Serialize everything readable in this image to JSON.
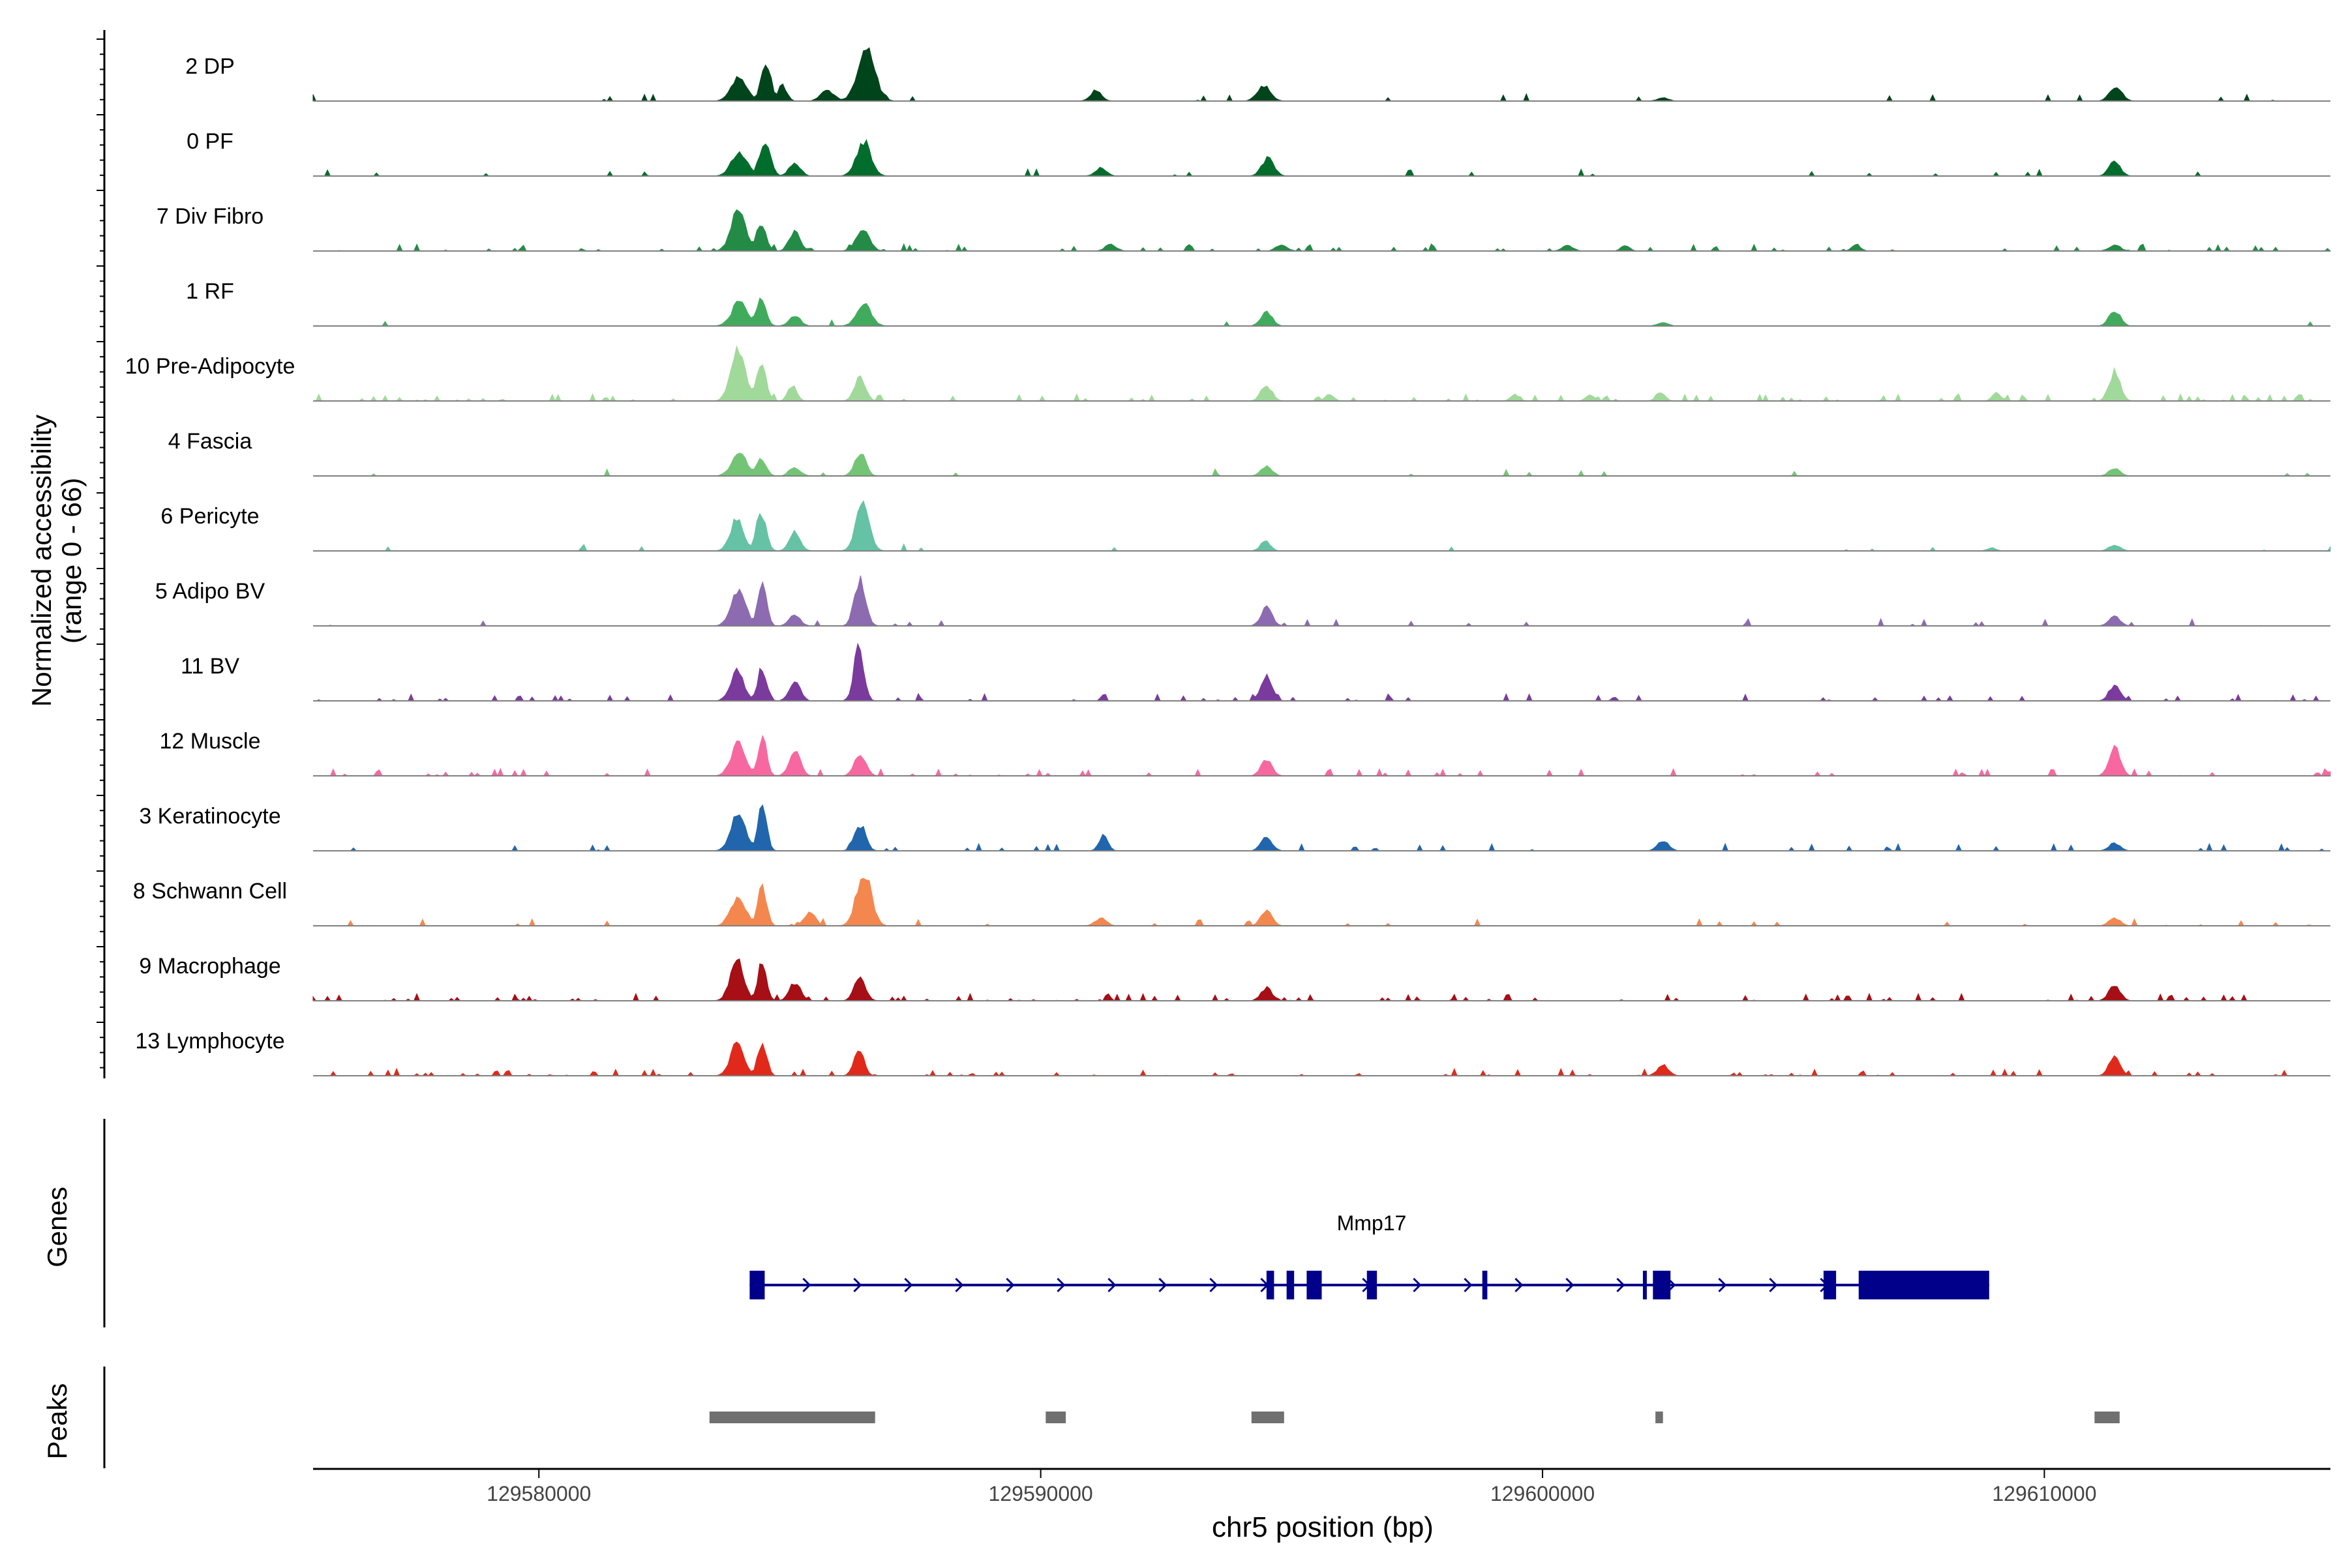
{
  "chart_data": {
    "type": "area",
    "title": "",
    "ylabel_line1": "Normalized accessibility",
    "ylabel_line2": "(range 0 - 66)",
    "yrange": [
      0,
      66
    ],
    "xlabel": "chr5 position (bp)",
    "xlim": [
      129575500,
      129615700
    ],
    "xticks": [
      129580000,
      129590000,
      129600000,
      129610000
    ],
    "xtick_labels": [
      "129580000",
      "129590000",
      "129600000",
      "129610000"
    ],
    "genes_label": "Genes",
    "peaks_label": "Peaks",
    "gene": {
      "name": "Mmp17",
      "strand": "+",
      "start": 129584200,
      "end": 129608900,
      "color": "#00008b",
      "exons": [
        [
          129584200,
          129584500
        ],
        [
          129594500,
          129594650
        ],
        [
          129594900,
          129595050
        ],
        [
          129595300,
          129595600
        ],
        [
          129596500,
          129596700
        ],
        [
          129598800,
          129598900
        ],
        [
          129602000,
          129602050
        ],
        [
          129602200,
          129602550
        ],
        [
          129605600,
          129605850
        ],
        [
          129606300,
          129608900
        ]
      ]
    },
    "peaks": {
      "color": "#707070",
      "regions": [
        [
          129583400,
          129586700
        ],
        [
          129590100,
          129590500
        ],
        [
          129594200,
          129594850
        ],
        [
          129602250,
          129602400
        ],
        [
          129611000,
          129611500
        ]
      ]
    },
    "track_baseline": "#808080",
    "tracks": [
      {
        "name": "2 DP",
        "color": "#00441b",
        "peaks": [
          [
            129583700,
            129584000,
            0.45
          ],
          [
            129584400,
            129584350,
            0.7
          ],
          [
            129584700,
            129584700,
            0.3
          ],
          [
            129585500,
            129585700,
            0.2
          ],
          [
            129586200,
            129586550,
            1.0
          ],
          [
            129590900,
            129591000,
            0.2
          ],
          [
            129594200,
            129594400,
            0.28
          ],
          [
            129602200,
            129602300,
            0.06
          ],
          [
            129611200,
            129611350,
            0.28
          ]
        ],
        "noise": 0.03
      },
      {
        "name": "0 PF",
        "color": "#006d2c",
        "peaks": [
          [
            129583700,
            129584000,
            0.45
          ],
          [
            129584400,
            129584300,
            0.62
          ],
          [
            129584900,
            129585000,
            0.25
          ],
          [
            129586200,
            129586450,
            0.65
          ],
          [
            129591000,
            129591100,
            0.15
          ],
          [
            129594300,
            129594450,
            0.33
          ],
          [
            129611200,
            129611300,
            0.3
          ]
        ],
        "noise": 0.03
      },
      {
        "name": "7 Div Fibro",
        "color": "#238b45",
        "peaks": [
          [
            129583700,
            129583950,
            0.75
          ],
          [
            129584300,
            129584250,
            0.55
          ],
          [
            129584900,
            129585000,
            0.35
          ],
          [
            129586200,
            129586400,
            0.4
          ],
          [
            129591200,
            129591300,
            0.12
          ],
          [
            129594600,
            129594700,
            0.12
          ],
          [
            129600300,
            129600400,
            0.1
          ],
          [
            129601500,
            129601500,
            0.1
          ],
          [
            129606100,
            129606100,
            0.12
          ],
          [
            129611200,
            129611300,
            0.12
          ]
        ],
        "noise": 0.12
      },
      {
        "name": "1 RF",
        "color": "#41ab5d",
        "peaks": [
          [
            129583700,
            129584000,
            0.45
          ],
          [
            129584300,
            129584250,
            0.5
          ],
          [
            129584900,
            129585000,
            0.2
          ],
          [
            129586200,
            129586450,
            0.4
          ],
          [
            129594300,
            129594400,
            0.28
          ],
          [
            129602200,
            129602300,
            0.06
          ],
          [
            129611200,
            129611300,
            0.3
          ]
        ],
        "noise": 0.02
      },
      {
        "name": "10 Pre-Adipocyte",
        "color": "#a1d99b",
        "peaks": [
          [
            129583700,
            129583950,
            0.95
          ],
          [
            129584300,
            129584250,
            0.7
          ],
          [
            129584900,
            129584900,
            0.3
          ],
          [
            129586200,
            129586300,
            0.45
          ],
          [
            129594300,
            129594400,
            0.3
          ],
          [
            129595600,
            129595600,
            0.12
          ],
          [
            129599300,
            129599300,
            0.12
          ],
          [
            129600800,
            129600800,
            0.12
          ],
          [
            129602200,
            129602200,
            0.18
          ],
          [
            129608900,
            129608900,
            0.15
          ],
          [
            129611200,
            129611300,
            0.55
          ]
        ],
        "noise": 0.14
      },
      {
        "name": "4 Fascia",
        "color": "#74c476",
        "peaks": [
          [
            129583700,
            129584000,
            0.4
          ],
          [
            129584300,
            129584250,
            0.33
          ],
          [
            129584900,
            129585000,
            0.15
          ],
          [
            129586200,
            129586300,
            0.45
          ],
          [
            129594300,
            129594400,
            0.18
          ],
          [
            129611200,
            129611300,
            0.15
          ]
        ],
        "noise": 0.03
      },
      {
        "name": "6 Pericyte",
        "color": "#66c2a4",
        "peaks": [
          [
            129583700,
            129583900,
            0.6
          ],
          [
            129584300,
            129584250,
            0.75
          ],
          [
            129584900,
            129585000,
            0.35
          ],
          [
            129586200,
            129586400,
            0.85
          ],
          [
            129594300,
            129594350,
            0.18
          ],
          [
            129608800,
            129608800,
            0.06
          ],
          [
            129611200,
            129611300,
            0.12
          ]
        ],
        "noise": 0.03
      },
      {
        "name": "5 Adipo BV",
        "color": "#8c6bb1",
        "peaks": [
          [
            129583700,
            129583950,
            0.65
          ],
          [
            129584300,
            129584300,
            0.8
          ],
          [
            129584900,
            129585000,
            0.2
          ],
          [
            129586200,
            129586300,
            0.9
          ],
          [
            129594300,
            129594400,
            0.35
          ],
          [
            129611200,
            129611300,
            0.18
          ]
        ],
        "noise": 0.04
      },
      {
        "name": "11 BV",
        "color": "#7a3b9d",
        "peaks": [
          [
            129583700,
            129583900,
            0.55
          ],
          [
            129584300,
            129584300,
            0.65
          ],
          [
            129584900,
            129585000,
            0.35
          ],
          [
            129586200,
            129586250,
            1.0
          ],
          [
            129594300,
            129594400,
            0.5
          ],
          [
            129611200,
            129611300,
            0.3
          ]
        ],
        "noise": 0.1
      },
      {
        "name": "12 Muscle",
        "color": "#f768a1",
        "peaks": [
          [
            129583700,
            129583950,
            0.6
          ],
          [
            129584300,
            129584300,
            0.75
          ],
          [
            129584900,
            129585000,
            0.5
          ],
          [
            129586200,
            129586300,
            0.45
          ],
          [
            129594300,
            129594400,
            0.3
          ],
          [
            129611200,
            129611300,
            0.55
          ]
        ],
        "noise": 0.1
      },
      {
        "name": "3 Keratinocyte",
        "color": "#2166ac",
        "peaks": [
          [
            129583700,
            129583950,
            0.7
          ],
          [
            129584300,
            129584300,
            0.9
          ],
          [
            129586200,
            129586300,
            0.5
          ],
          [
            129591100,
            129591100,
            0.3
          ],
          [
            129594300,
            129594400,
            0.25
          ],
          [
            129602200,
            129602300,
            0.2
          ],
          [
            129611200,
            129611300,
            0.15
          ]
        ],
        "noise": 0.06
      },
      {
        "name": "8 Schwann Cell",
        "color": "#f4874e",
        "peaks": [
          [
            129583700,
            129583950,
            0.55
          ],
          [
            129584300,
            129584300,
            0.75
          ],
          [
            129585200,
            129585300,
            0.25
          ],
          [
            129586200,
            129586450,
            1.0
          ],
          [
            129591000,
            129591100,
            0.15
          ],
          [
            129594300,
            129594400,
            0.3
          ],
          [
            129611200,
            129611300,
            0.15
          ]
        ],
        "noise": 0.05
      },
      {
        "name": "9 Macrophage",
        "color": "#a50f15",
        "peaks": [
          [
            129583700,
            129583900,
            0.8
          ],
          [
            129584300,
            129584300,
            0.75
          ],
          [
            129584900,
            129585000,
            0.35
          ],
          [
            129586200,
            129586300,
            0.45
          ],
          [
            129594300,
            129594400,
            0.25
          ],
          [
            129611200,
            129611300,
            0.3
          ]
        ],
        "noise": 0.12
      },
      {
        "name": "13 Lymphocyte",
        "color": "#e0291b",
        "peaks": [
          [
            129583700,
            129583900,
            0.6
          ],
          [
            129584300,
            129584300,
            0.65
          ],
          [
            129586200,
            129586250,
            0.5
          ],
          [
            129602200,
            129602300,
            0.2
          ],
          [
            129611200,
            129611300,
            0.35
          ]
        ],
        "noise": 0.15
      }
    ]
  }
}
